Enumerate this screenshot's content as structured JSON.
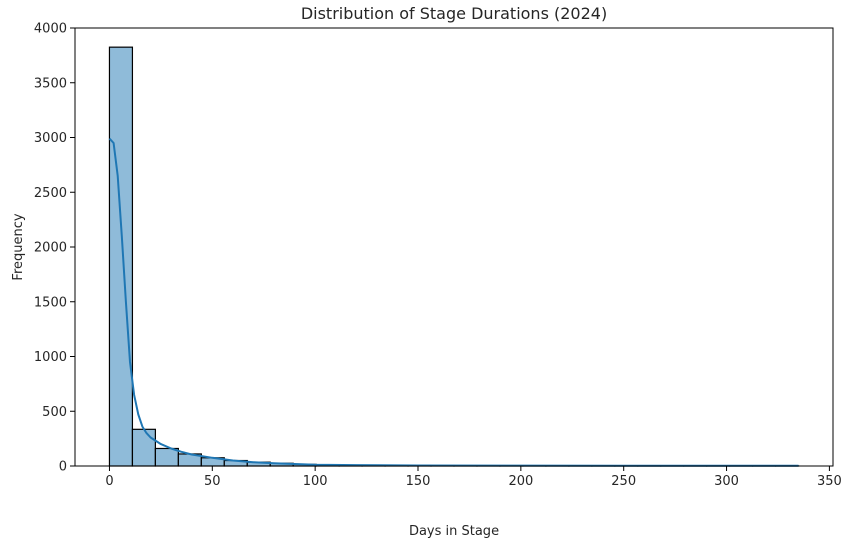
{
  "chart_data": {
    "type": "bar",
    "title": "Distribution of Stage Durations (2024)",
    "xlabel": "Days in Stage",
    "ylabel": "Frequency",
    "xlim": [
      -16.75,
      351.75
    ],
    "ylim": [
      0,
      4000
    ],
    "xticks": [
      0,
      50,
      100,
      150,
      200,
      250,
      300,
      350
    ],
    "yticks": [
      0,
      500,
      1000,
      1500,
      2000,
      2500,
      3000,
      3500,
      4000
    ],
    "bin_edges": [
      0,
      11.17,
      22.33,
      33.5,
      44.67,
      55.83,
      67,
      78.17,
      89.33,
      100.5,
      111.67,
      122.83,
      134,
      145.17,
      156.33,
      167.5,
      178.67,
      189.83,
      201,
      212.17,
      223.33,
      234.5,
      245.67,
      256.83,
      268,
      279.17,
      290.33,
      301.5,
      312.67,
      323.83,
      335
    ],
    "values": [
      3825,
      335,
      160,
      110,
      75,
      50,
      35,
      25,
      15,
      10,
      8,
      6,
      5,
      5,
      4,
      3,
      3,
      2,
      2,
      2,
      1,
      2,
      1,
      1,
      1,
      1,
      1,
      1,
      1,
      1
    ],
    "kde": {
      "x": [
        0,
        2,
        4,
        6,
        8,
        10,
        12,
        14,
        16,
        18,
        20,
        25,
        30,
        35,
        40,
        50,
        60,
        70,
        80,
        90,
        100,
        120,
        150,
        200,
        250,
        300,
        335
      ],
      "y": [
        2990,
        2950,
        2650,
        2100,
        1500,
        950,
        650,
        470,
        360,
        300,
        260,
        200,
        160,
        130,
        105,
        75,
        50,
        35,
        25,
        18,
        12,
        8,
        5,
        4,
        3,
        3,
        2
      ]
    },
    "grid": false,
    "colors": {
      "bar_fill": "#8fbbd9",
      "bar_edge": "#000000",
      "kde_line": "#1f77b4"
    }
  }
}
